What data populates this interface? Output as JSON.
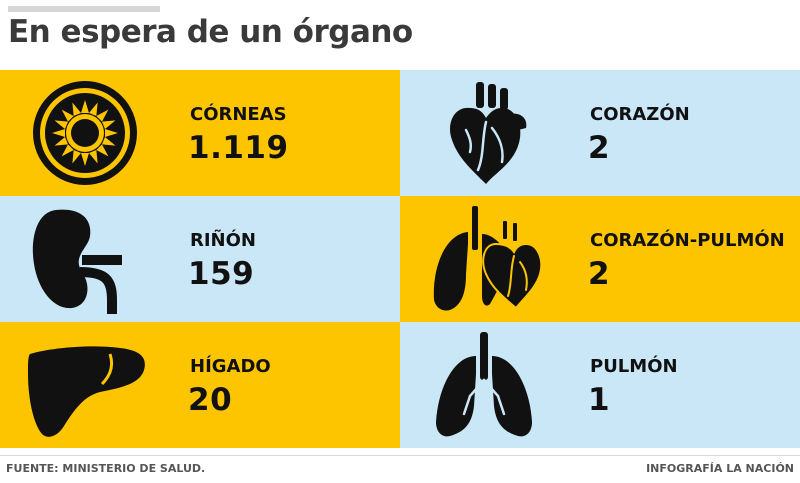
{
  "title": "En espera de un órgano",
  "colors": {
    "yellow": "#fdc400",
    "blue": "#c9e7f7",
    "title": "#3a3a3a",
    "text": "#111111"
  },
  "organs": [
    {
      "label": "CÓRNEAS",
      "value": "1.119",
      "icon": "cornea-icon"
    },
    {
      "label": "CORAZÓN",
      "value": "2",
      "icon": "heart-icon"
    },
    {
      "label": "RIÑÓN",
      "value": "159",
      "icon": "kidney-icon"
    },
    {
      "label": "CORAZÓN-PULMÓN",
      "value": "2",
      "icon": "heart-lung-icon"
    },
    {
      "label": "HÍGADO",
      "value": "20",
      "icon": "liver-icon"
    },
    {
      "label": "PULMÓN",
      "value": "1",
      "icon": "lungs-icon"
    }
  ],
  "footer": {
    "source": "FUENTE: MINISTERIO DE SALUD.",
    "credit": "INFOGRAFÍA LA NACIÓN"
  }
}
